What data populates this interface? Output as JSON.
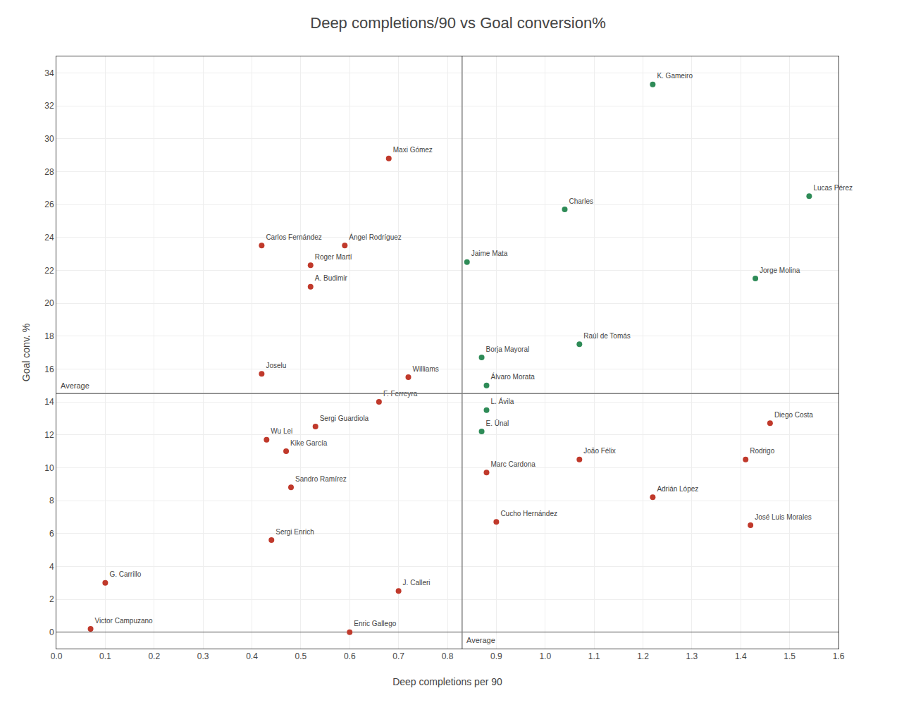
{
  "chart_data": {
    "type": "scatter",
    "title": "Deep completions/90 vs Goal conversion%",
    "xlabel": "Deep completions per 90",
    "ylabel": "Goal conv. %",
    "x": [
      1.22,
      1.54,
      1.04,
      0.68,
      0.42,
      0.59,
      0.52,
      0.52,
      0.84,
      1.43,
      1.07,
      0.87,
      0.88,
      0.72,
      0.42,
      0.88,
      0.87,
      1.46,
      1.41,
      1.07,
      0.88,
      1.22,
      1.42,
      0.9,
      0.66,
      0.53,
      0.43,
      0.47,
      0.48,
      0.44,
      0.1,
      0.7,
      0.6,
      0.07
    ],
    "values": [
      33.3,
      26.5,
      25.7,
      28.8,
      23.5,
      23.5,
      22.3,
      21.0,
      22.5,
      21.5,
      17.5,
      16.7,
      15.0,
      15.5,
      15.7,
      13.5,
      12.2,
      12.7,
      10.5,
      10.5,
      9.7,
      8.2,
      6.5,
      6.7,
      14.0,
      12.5,
      11.7,
      11.0,
      8.8,
      5.6,
      3.0,
      2.5,
      0.0,
      0.2
    ],
    "labels": [
      "K. Gameiro",
      "Lucas Pérez",
      "Charles",
      "Maxi Gómez",
      "Carlos Fernández",
      "Ángel Rodríguez",
      "Roger Martí",
      "A. Budimir",
      "Jaime Mata",
      "Jorge Molina",
      "Raúl de Tomás",
      "Borja Mayoral",
      "Álvaro Morata",
      "Williams",
      "Joselu",
      "L. Ávila",
      "E. Ünal",
      "Diego Costa",
      "Rodrigo",
      "João Félix",
      "Marc Cardona",
      "Adrián López",
      "José Luis Morales",
      "Cucho Hernández",
      "F. Ferreyra",
      "Sergi Guardiola",
      "Wu Lei",
      "Kike García",
      "Sandro Ramírez",
      "Sergi Enrich",
      "G. Carrillo",
      "J. Calleri",
      "Enric Gallego",
      "Victor Campuzano"
    ],
    "colors": [
      "#2e8b57",
      "#2e8b57",
      "#2e8b57",
      "#c0392b",
      "#c0392b",
      "#c0392b",
      "#c0392b",
      "#c0392b",
      "#2e8b57",
      "#2e8b57",
      "#2e8b57",
      "#2e8b57",
      "#2e8b57",
      "#c0392b",
      "#c0392b",
      "#2e8b57",
      "#2e8b57",
      "#c0392b",
      "#c0392b",
      "#c0392b",
      "#c0392b",
      "#c0392b",
      "#c0392b",
      "#c0392b",
      "#c0392b",
      "#c0392b",
      "#c0392b",
      "#c0392b",
      "#c0392b",
      "#c0392b",
      "#c0392b",
      "#c0392b",
      "#c0392b",
      "#c0392b"
    ],
    "xlim": [
      0.0,
      1.6
    ],
    "ylim": [
      -1,
      35
    ],
    "xticks": [
      {
        "value": 0.0,
        "label": "0.0"
      },
      0.1,
      0.2,
      0.3,
      0.4,
      0.5,
      0.6,
      0.7,
      0.8,
      0.9,
      {
        "value": 1.0,
        "label": "1.0"
      },
      1.1,
      1.2,
      1.3,
      1.4,
      1.5,
      1.6
    ],
    "yticks": [
      0,
      2,
      4,
      6,
      8,
      10,
      12,
      14,
      16,
      18,
      20,
      22,
      24,
      26,
      28,
      30,
      32,
      34
    ],
    "grid": true,
    "reference_lines": [
      {
        "axis": "x",
        "value": 0.83,
        "label": "Average"
      },
      {
        "axis": "y",
        "value": 14.5,
        "label": "Average"
      }
    ]
  }
}
